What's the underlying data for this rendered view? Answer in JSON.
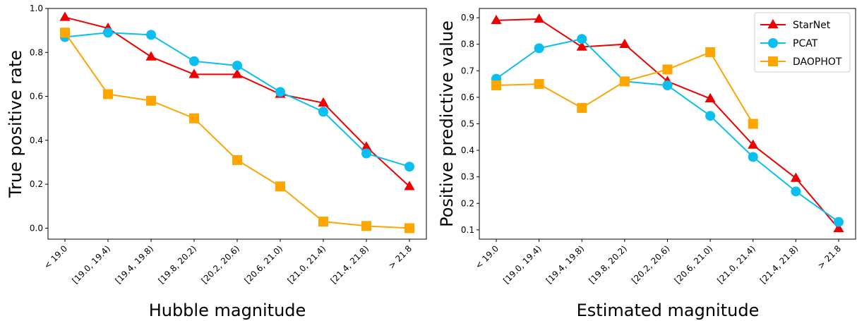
{
  "chart_data": [
    {
      "type": "line",
      "xlabel": "Hubble magnitude",
      "ylabel": "True positive rate",
      "categories": [
        "< 19.0",
        "[19.0, 19.4)",
        "[19.4, 19.8)",
        "[19.8, 20.2)",
        "[20.2, 20.6)",
        "[20.6, 21.0)",
        "[21.0, 21.4)",
        "[21.4, 21.8)",
        "> 21.8"
      ],
      "ylim": [
        -0.05,
        1.0
      ],
      "yticks": [
        "0.0",
        "0.2",
        "0.4",
        "0.6",
        "0.8",
        "1.0"
      ],
      "grid": false,
      "legend": null,
      "series": [
        {
          "name": "StarNet",
          "color": "#ee0000",
          "marker": "triangle",
          "values": [
            0.96,
            0.91,
            0.78,
            0.7,
            0.7,
            0.61,
            0.57,
            0.37,
            0.19
          ]
        },
        {
          "name": "PCAT",
          "color": "#0abff0",
          "marker": "circle",
          "values": [
            0.87,
            0.89,
            0.88,
            0.76,
            0.74,
            0.62,
            0.53,
            0.34,
            0.28
          ]
        },
        {
          "name": "DAOPHOT",
          "color": "#ffa500",
          "marker": "square",
          "values": [
            0.89,
            0.61,
            0.58,
            0.5,
            0.31,
            0.19,
            0.03,
            0.01,
            0.0
          ]
        }
      ]
    },
    {
      "type": "line",
      "xlabel": "Estimated magnitude",
      "ylabel": "Positive predictive value",
      "categories": [
        "< 19.0",
        "[19.0, 19.4)",
        "[19.4, 19.8)",
        "[19.8, 20.2)",
        "[20.2, 20.6)",
        "[20.6, 21.0)",
        "[21.0, 21.4)",
        "[21.4, 21.8)",
        "> 21.8"
      ],
      "ylim": [
        0.065,
        0.935
      ],
      "yticks": [
        "0.1",
        "0.2",
        "0.3",
        "0.4",
        "0.5",
        "0.6",
        "0.7",
        "0.8",
        "0.9"
      ],
      "grid": false,
      "legend": "top-right",
      "series": [
        {
          "name": "StarNet",
          "color": "#ee0000",
          "marker": "triangle",
          "values": [
            0.89,
            0.895,
            0.79,
            0.8,
            0.66,
            0.595,
            0.42,
            0.295,
            0.105
          ]
        },
        {
          "name": "PCAT",
          "color": "#0abff0",
          "marker": "circle",
          "values": [
            0.67,
            0.785,
            0.82,
            0.66,
            0.645,
            0.53,
            0.375,
            0.245,
            0.13
          ]
        },
        {
          "name": "DAOPHOT",
          "color": "#ffa500",
          "marker": "square",
          "values": [
            0.645,
            0.65,
            0.56,
            0.66,
            0.705,
            0.77,
            0.5,
            null,
            null
          ]
        }
      ]
    }
  ]
}
